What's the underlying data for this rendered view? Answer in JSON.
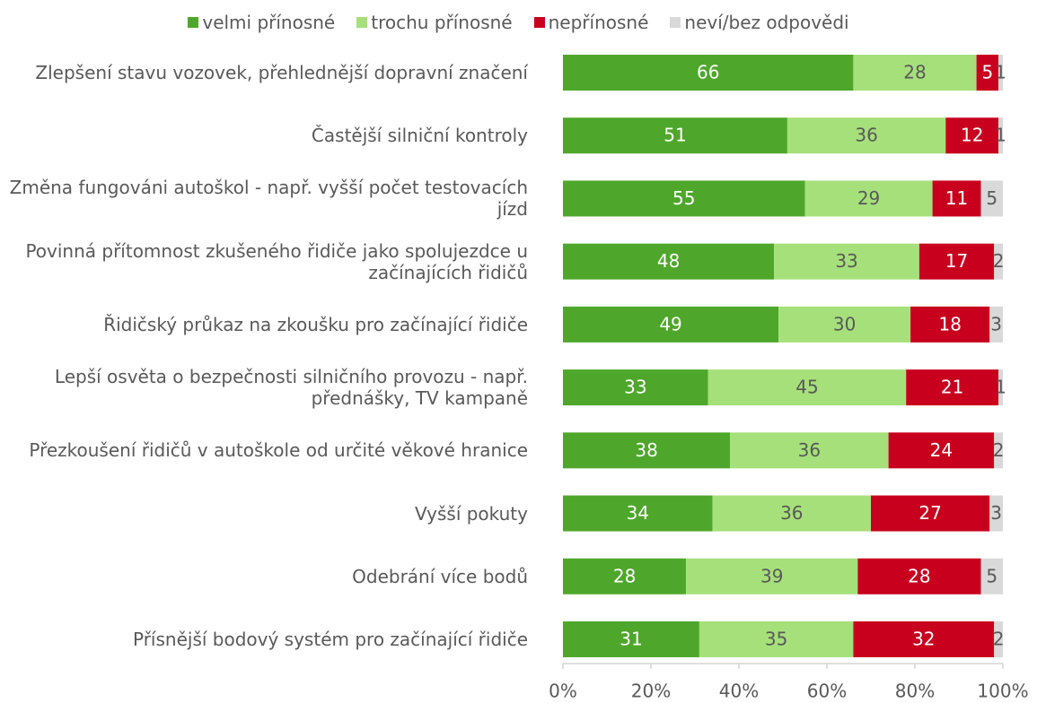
{
  "chart_data": {
    "type": "stacked-bar-horizontal",
    "categories": [
      "Zlepšení stavu vozovek, přehlednější dopravní značení",
      "Častější silniční kontroly",
      "Změna fungováni autoškol - např. vyšší počet testovacích jízd",
      "Povinná přítomnost zkušeného řidiče jako spolujezdce u začínajících řidičů",
      "Řidičský průkaz na zkoušku pro začínající řidiče",
      "Lepší osvěta o bezpečnosti silničního provozu - např. přednášky, TV kampaně",
      "Přezkoušení řidičů v autoškole od určité věkové hranice",
      "Vyšší pokuty",
      "Odebrání více bodů",
      "Přísnější bodový systém pro začínající řidiče"
    ],
    "series": [
      {
        "name": "velmi přínosné",
        "color": "#4ea72a",
        "label_color": "#ffffff",
        "values": [
          66,
          51,
          55,
          48,
          49,
          33,
          38,
          34,
          28,
          31
        ]
      },
      {
        "name": "trochu přínosné",
        "color": "#a6e07a",
        "label_color": "#595959",
        "values": [
          28,
          36,
          29,
          33,
          30,
          45,
          36,
          36,
          39,
          35
        ]
      },
      {
        "name": "nepřínosné",
        "color": "#c8001e",
        "label_color": "#ffffff",
        "values": [
          5,
          12,
          11,
          17,
          18,
          21,
          24,
          27,
          28,
          32
        ]
      },
      {
        "name": "neví/bez odpovědi",
        "color": "#d9d9d9",
        "label_color": "#595959",
        "values": [
          1,
          1,
          5,
          2,
          3,
          1,
          2,
          3,
          5,
          2
        ]
      }
    ],
    "xlim": [
      0,
      100
    ],
    "xticks": [
      {
        "value": 0,
        "label": "0%"
      },
      {
        "value": 20,
        "label": "20%"
      },
      {
        "value": 40,
        "label": "40%"
      },
      {
        "value": 60,
        "label": "60%"
      },
      {
        "value": 80,
        "label": "80%"
      },
      {
        "value": 100,
        "label": "100%"
      }
    ],
    "legend": "top"
  }
}
